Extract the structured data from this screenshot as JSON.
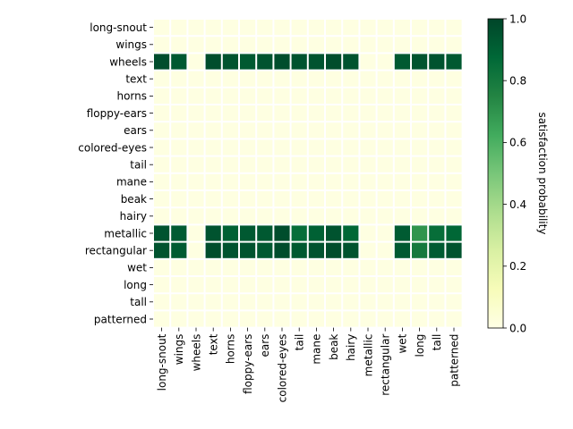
{
  "chart_data": {
    "type": "heatmap",
    "title": "",
    "xlabel": "",
    "ylabel": "",
    "x_categories": [
      "long-snout",
      "wings",
      "wheels",
      "text",
      "horns",
      "floppy-ears",
      "ears",
      "colored-eyes",
      "tail",
      "mane",
      "beak",
      "hairy",
      "metallic",
      "rectangular",
      "wet",
      "long",
      "tall",
      "patterned"
    ],
    "y_categories": [
      "long-snout",
      "wings",
      "wheels",
      "text",
      "horns",
      "floppy-ears",
      "ears",
      "colored-eyes",
      "tail",
      "mane",
      "beak",
      "hairy",
      "metallic",
      "rectangular",
      "wet",
      "long",
      "tall",
      "patterned"
    ],
    "values": [
      [
        0.01,
        0.01,
        0.01,
        0.01,
        0.01,
        0.01,
        0.01,
        0.01,
        0.01,
        0.01,
        0.01,
        0.01,
        0.01,
        0.01,
        0.01,
        0.01,
        0.01,
        0.01
      ],
      [
        0.01,
        0.01,
        0.01,
        0.01,
        0.01,
        0.01,
        0.01,
        0.01,
        0.01,
        0.01,
        0.01,
        0.01,
        0.01,
        0.01,
        0.01,
        0.01,
        0.01,
        0.01
      ],
      [
        0.97,
        0.93,
        0.01,
        0.97,
        0.95,
        0.93,
        0.95,
        0.97,
        0.95,
        0.95,
        0.97,
        0.95,
        0.01,
        0.01,
        0.93,
        0.95,
        0.95,
        0.93
      ],
      [
        0.01,
        0.01,
        0.01,
        0.01,
        0.01,
        0.01,
        0.01,
        0.01,
        0.01,
        0.01,
        0.01,
        0.01,
        0.01,
        0.01,
        0.01,
        0.01,
        0.01,
        0.01
      ],
      [
        0.01,
        0.01,
        0.01,
        0.01,
        0.01,
        0.01,
        0.01,
        0.01,
        0.01,
        0.01,
        0.01,
        0.01,
        0.01,
        0.01,
        0.01,
        0.01,
        0.01,
        0.01
      ],
      [
        0.01,
        0.01,
        0.01,
        0.01,
        0.01,
        0.01,
        0.01,
        0.01,
        0.01,
        0.01,
        0.01,
        0.01,
        0.01,
        0.01,
        0.01,
        0.01,
        0.01,
        0.01
      ],
      [
        0.01,
        0.01,
        0.01,
        0.01,
        0.01,
        0.01,
        0.01,
        0.01,
        0.01,
        0.01,
        0.01,
        0.01,
        0.01,
        0.01,
        0.01,
        0.01,
        0.01,
        0.01
      ],
      [
        0.01,
        0.01,
        0.01,
        0.01,
        0.01,
        0.01,
        0.01,
        0.01,
        0.01,
        0.01,
        0.01,
        0.01,
        0.01,
        0.01,
        0.01,
        0.01,
        0.01,
        0.01
      ],
      [
        0.01,
        0.01,
        0.01,
        0.01,
        0.01,
        0.01,
        0.01,
        0.01,
        0.01,
        0.01,
        0.01,
        0.01,
        0.01,
        0.01,
        0.01,
        0.01,
        0.01,
        0.01
      ],
      [
        0.01,
        0.01,
        0.01,
        0.01,
        0.01,
        0.01,
        0.01,
        0.01,
        0.01,
        0.01,
        0.01,
        0.01,
        0.01,
        0.01,
        0.01,
        0.01,
        0.01,
        0.01
      ],
      [
        0.01,
        0.01,
        0.01,
        0.01,
        0.01,
        0.01,
        0.01,
        0.01,
        0.01,
        0.01,
        0.01,
        0.01,
        0.01,
        0.01,
        0.01,
        0.01,
        0.01,
        0.01
      ],
      [
        0.01,
        0.01,
        0.01,
        0.01,
        0.01,
        0.01,
        0.01,
        0.01,
        0.01,
        0.01,
        0.01,
        0.01,
        0.01,
        0.01,
        0.01,
        0.01,
        0.01,
        0.01
      ],
      [
        0.95,
        0.92,
        0.01,
        0.95,
        0.9,
        0.93,
        0.93,
        0.97,
        0.85,
        0.9,
        0.95,
        0.88,
        0.01,
        0.01,
        0.92,
        0.7,
        0.85,
        0.88
      ],
      [
        0.95,
        0.92,
        0.01,
        0.97,
        0.95,
        0.95,
        0.93,
        0.97,
        0.93,
        0.95,
        0.97,
        0.95,
        0.01,
        0.01,
        0.93,
        0.8,
        0.92,
        0.95
      ],
      [
        0.01,
        0.01,
        0.01,
        0.01,
        0.01,
        0.01,
        0.01,
        0.01,
        0.01,
        0.01,
        0.01,
        0.01,
        0.01,
        0.01,
        0.01,
        0.01,
        0.01,
        0.01
      ],
      [
        0.01,
        0.01,
        0.01,
        0.01,
        0.01,
        0.01,
        0.01,
        0.01,
        0.01,
        0.01,
        0.01,
        0.01,
        0.01,
        0.01,
        0.01,
        0.01,
        0.01,
        0.01
      ],
      [
        0.01,
        0.01,
        0.01,
        0.01,
        0.01,
        0.01,
        0.01,
        0.01,
        0.01,
        0.01,
        0.01,
        0.01,
        0.01,
        0.01,
        0.01,
        0.01,
        0.01,
        0.01
      ],
      [
        0.01,
        0.01,
        0.01,
        0.01,
        0.01,
        0.01,
        0.01,
        0.01,
        0.01,
        0.01,
        0.01,
        0.01,
        0.01,
        0.01,
        0.01,
        0.01,
        0.01,
        0.01
      ]
    ],
    "colormap": "YlGn",
    "vmin": 0.0,
    "vmax": 1.0,
    "colorbar": {
      "label": "satisfaction probability",
      "ticks": [
        0.0,
        0.2,
        0.4,
        0.6,
        0.8,
        1.0
      ],
      "tick_labels": [
        "0.0",
        "0.2",
        "0.4",
        "0.6",
        "0.8",
        "1.0"
      ]
    },
    "grid": false,
    "cell_separator_color": "#ffffff"
  }
}
